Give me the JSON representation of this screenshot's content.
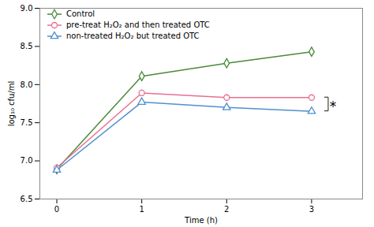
{
  "chart_data": {
    "type": "line",
    "xlabel": "Time (h)",
    "ylabel": "log₁₀ cfu/ml",
    "x": [
      0,
      1,
      2,
      3
    ],
    "series": [
      {
        "name": "Control",
        "color": "#4a8a3a",
        "marker": "diamond",
        "values": [
          6.89,
          8.11,
          8.28,
          8.43
        ],
        "yerr": [
          0.02,
          0.04,
          0.03,
          0.03
        ]
      },
      {
        "name": "pre-treat H₂O₂ and then treated OTC",
        "color": "#e87090",
        "marker": "circle",
        "values": [
          6.91,
          7.89,
          7.83,
          7.83
        ],
        "yerr": [
          0.03,
          0.04,
          0.04,
          0.03
        ]
      },
      {
        "name": "non-treated H₂O₂ but treated OTC",
        "color": "#5090d0",
        "marker": "triangle",
        "values": [
          6.88,
          7.77,
          7.7,
          7.65
        ],
        "yerr": [
          0.02,
          0.04,
          0.03,
          0.04
        ]
      }
    ],
    "xlim": [
      -0.2,
      3.6
    ],
    "xticks": [
      0,
      1,
      2,
      3
    ],
    "ylim": [
      6.5,
      9.0
    ],
    "yticks": [
      6.5,
      {
        "value": 7,
        "label": "7.0"
      },
      7.5,
      {
        "value": 8,
        "label": "8.0"
      },
      8.5,
      {
        "value": 9,
        "label": "9.0"
      }
    ],
    "legend": "upper left",
    "grid": false,
    "annotations": [
      {
        "text": "*",
        "x": 3.2,
        "y_top": 7.83,
        "y_bottom": 7.65
      }
    ]
  }
}
